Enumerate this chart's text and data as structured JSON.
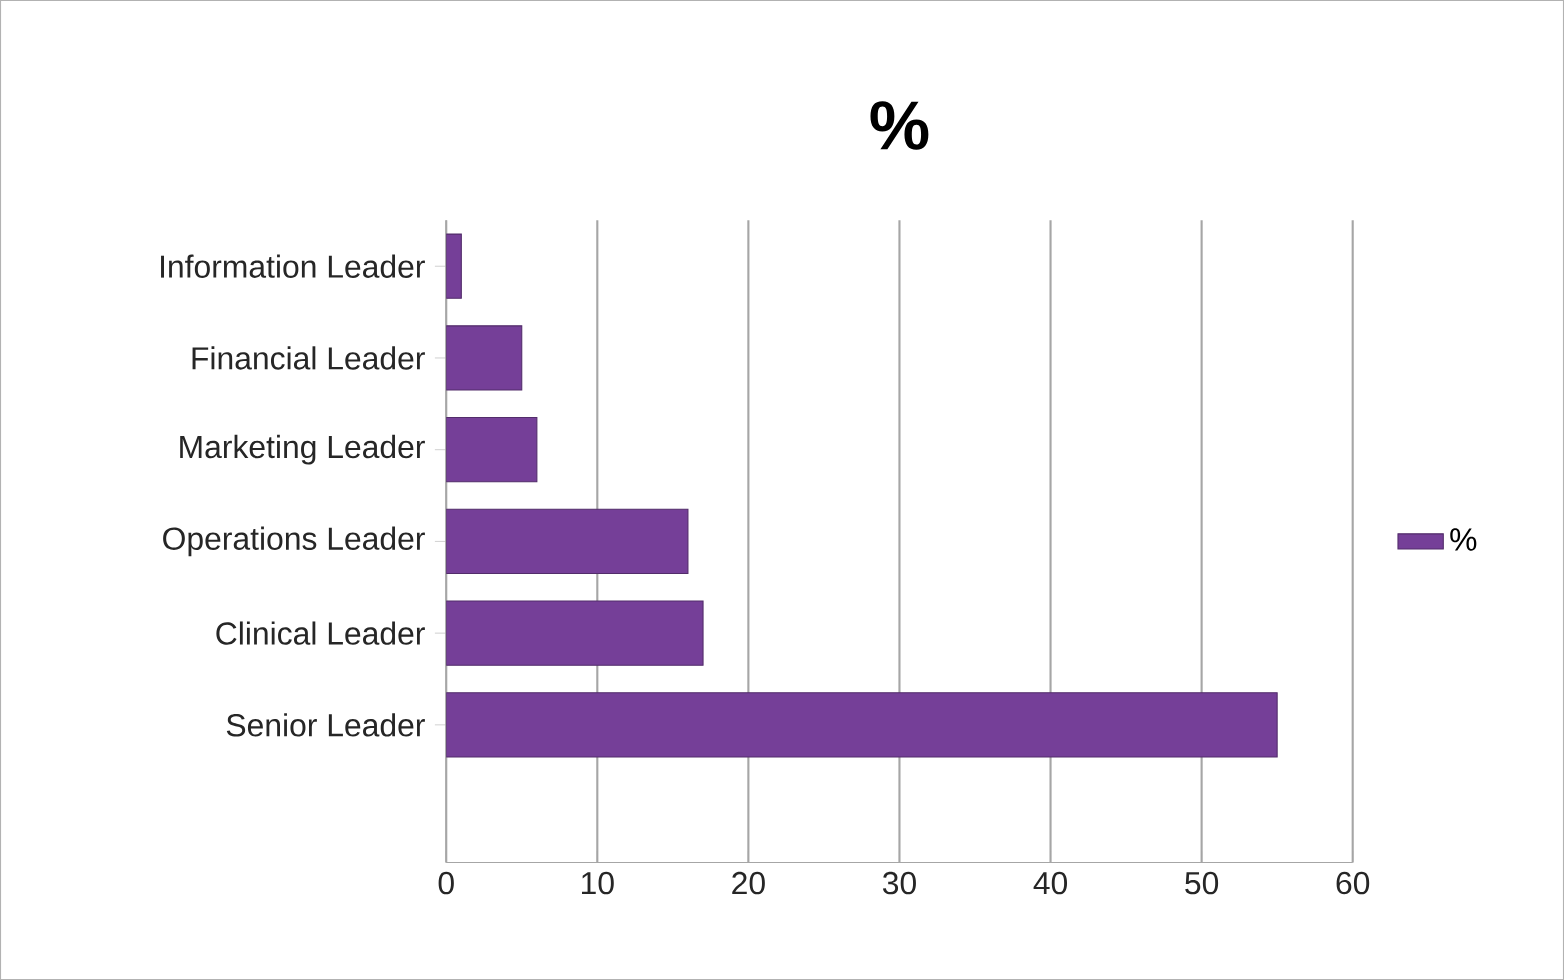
{
  "chart_data": {
    "type": "bar",
    "orientation": "horizontal",
    "title": "%",
    "categories": [
      "Information Leader",
      "Financial Leader",
      "Marketing Leader",
      "Operations Leader",
      "Clinical Leader",
      "Senior Leader"
    ],
    "series": [
      {
        "name": "%",
        "color": "#753f98",
        "values": [
          1,
          5,
          6,
          16,
          17,
          55
        ]
      }
    ],
    "xlim": [
      0,
      60
    ],
    "xticks": [
      0,
      10,
      20,
      30,
      40,
      50,
      60
    ],
    "grid": "x",
    "legend": "right"
  }
}
